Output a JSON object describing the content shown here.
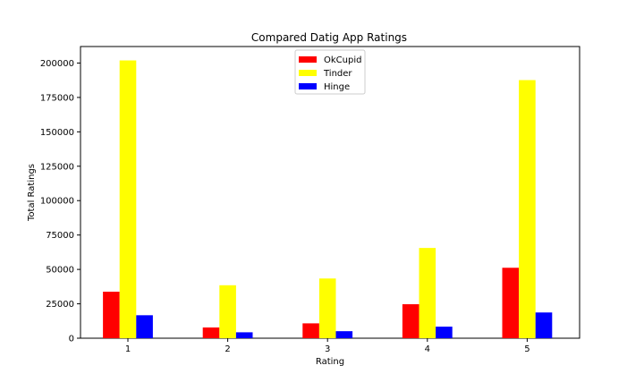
{
  "chart_data": {
    "type": "bar",
    "title": "Compared Datig App Ratings",
    "xlabel": "Rating",
    "ylabel": "Total Ratings",
    "categories": [
      "1",
      "2",
      "3",
      "4",
      "5"
    ],
    "series": [
      {
        "name": "OkCupid",
        "color": "#ff0000",
        "values": [
          33800,
          7800,
          10800,
          24700,
          51200
        ]
      },
      {
        "name": "Tinder",
        "color": "#ffff00",
        "values": [
          201900,
          38500,
          43400,
          65600,
          187600
        ]
      },
      {
        "name": "Hinge",
        "color": "#0000ff",
        "values": [
          16700,
          4300,
          5100,
          8400,
          18700
        ]
      }
    ],
    "ylim": [
      0,
      212000
    ],
    "yticks": [
      0,
      25000,
      50000,
      75000,
      100000,
      125000,
      150000,
      175000,
      200000
    ],
    "legend_position": "top-center",
    "grid": false
  }
}
